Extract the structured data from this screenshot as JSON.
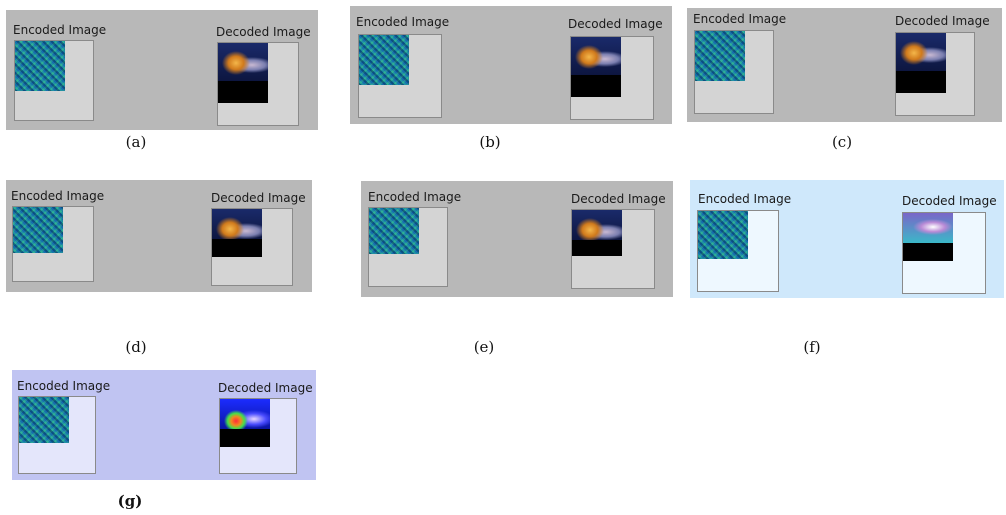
{
  "labels": {
    "encoded": "Encoded Image",
    "decoded": "Decoded Image"
  },
  "panels": [
    {
      "caption": "(a)",
      "background": "#b8b8b8"
    },
    {
      "caption": "(b)",
      "background": "#b8b8b8"
    },
    {
      "caption": "(c)",
      "background": "#b8b8b8"
    },
    {
      "caption": "(d)",
      "background": "#b8b8b8"
    },
    {
      "caption": "(e)",
      "background": "#b8b8b8"
    },
    {
      "caption": "(f)",
      "background": "#cfe8fb"
    },
    {
      "caption": "(g)",
      "background": "#c0c4f2"
    }
  ]
}
